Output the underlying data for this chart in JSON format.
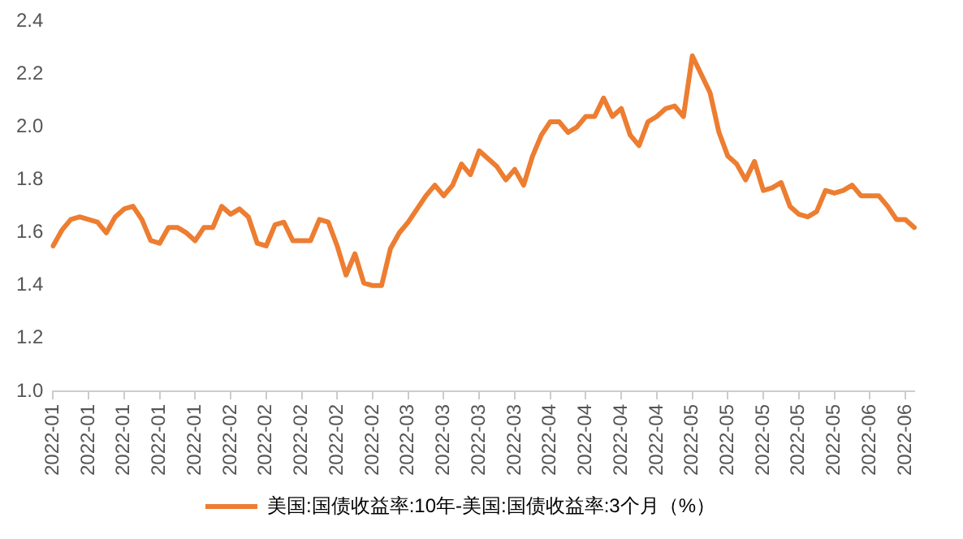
{
  "chart_data": {
    "type": "line",
    "categories": [
      "2022-01",
      null,
      null,
      null,
      "2022-01",
      null,
      null,
      null,
      "2022-01",
      null,
      null,
      null,
      "2022-01",
      null,
      null,
      null,
      "2022-01",
      null,
      null,
      null,
      "2022-02",
      null,
      null,
      null,
      "2022-02",
      null,
      null,
      null,
      "2022-02",
      null,
      null,
      null,
      "2022-02",
      null,
      null,
      null,
      "2022-02",
      null,
      null,
      null,
      "2022-03",
      null,
      null,
      null,
      "2022-03",
      null,
      null,
      null,
      "2022-03",
      null,
      null,
      null,
      "2022-03",
      null,
      null,
      null,
      "2022-04",
      null,
      null,
      null,
      "2022-04",
      null,
      null,
      null,
      "2022-04",
      null,
      null,
      null,
      "2022-04",
      null,
      null,
      null,
      "2022-05",
      null,
      null,
      null,
      "2022-05",
      null,
      null,
      null,
      "2022-05",
      null,
      null,
      null,
      "2022-05",
      null,
      null,
      null,
      "2022-05",
      null,
      null,
      null,
      "2022-06",
      null,
      null,
      null,
      "2022-06",
      null
    ],
    "series": [
      {
        "name": "美国:国债收益率:10年-美国:国债收益率:3个月（%）",
        "color": "#ed7d31",
        "values": [
          1.55,
          1.61,
          1.65,
          1.66,
          1.65,
          1.64,
          1.6,
          1.66,
          1.69,
          1.7,
          1.65,
          1.57,
          1.56,
          1.62,
          1.62,
          1.6,
          1.57,
          1.62,
          1.62,
          1.7,
          1.67,
          1.69,
          1.66,
          1.56,
          1.55,
          1.63,
          1.64,
          1.57,
          1.57,
          1.57,
          1.65,
          1.64,
          1.55,
          1.44,
          1.52,
          1.41,
          1.4,
          1.4,
          1.54,
          1.6,
          1.64,
          1.69,
          1.74,
          1.78,
          1.74,
          1.78,
          1.86,
          1.82,
          1.91,
          1.88,
          1.85,
          1.8,
          1.84,
          1.78,
          1.89,
          1.97,
          2.02,
          2.02,
          1.98,
          2.0,
          2.04,
          2.04,
          2.11,
          2.04,
          2.07,
          1.97,
          1.93,
          2.02,
          2.04,
          2.07,
          2.08,
          2.04,
          2.27,
          2.2,
          2.13,
          1.98,
          1.89,
          1.86,
          1.8,
          1.87,
          1.76,
          1.77,
          1.79,
          1.7,
          1.67,
          1.66,
          1.68,
          1.76,
          1.75,
          1.76,
          1.78,
          1.74,
          1.74,
          1.74,
          1.7,
          1.65,
          1.65,
          1.62
        ]
      }
    ],
    "ylim": [
      1.0,
      2.4
    ],
    "yticks": [
      {
        "value": 1.0,
        "label": "1.0"
      },
      {
        "value": 1.2,
        "label": "1.2"
      },
      {
        "value": 1.4,
        "label": "1.4"
      },
      {
        "value": 1.6,
        "label": "1.6"
      },
      {
        "value": 1.8,
        "label": "1.8"
      },
      {
        "value": 2.0,
        "label": "2.0"
      },
      {
        "value": 2.2,
        "label": "2.2"
      },
      {
        "value": 2.4,
        "label": "2.4"
      }
    ],
    "grid": false,
    "legend": "bottom",
    "marker": "none",
    "line_style": "solid"
  }
}
